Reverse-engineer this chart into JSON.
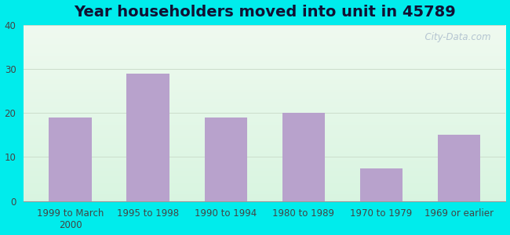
{
  "title": "Year householders moved into unit in 45789",
  "categories": [
    "1999 to March\n2000",
    "1995 to 1998",
    "1990 to 1994",
    "1980 to 1989",
    "1970 to 1979",
    "1969 or earlier"
  ],
  "values": [
    19,
    29,
    19,
    20,
    7.5,
    15
  ],
  "bar_color": "#b8a2cc",
  "ylim": [
    0,
    40
  ],
  "yticks": [
    0,
    10,
    20,
    30,
    40
  ],
  "bg_outer": "#00ecec",
  "bg_plot_topleft": "#ddeedd",
  "bg_plot_bottomright": "#f5fff5",
  "bg_plot_white": "#ffffff",
  "grid_color": "#ccddcc",
  "title_fontsize": 14,
  "tick_fontsize": 8.5,
  "watermark": "  City-Data.com"
}
